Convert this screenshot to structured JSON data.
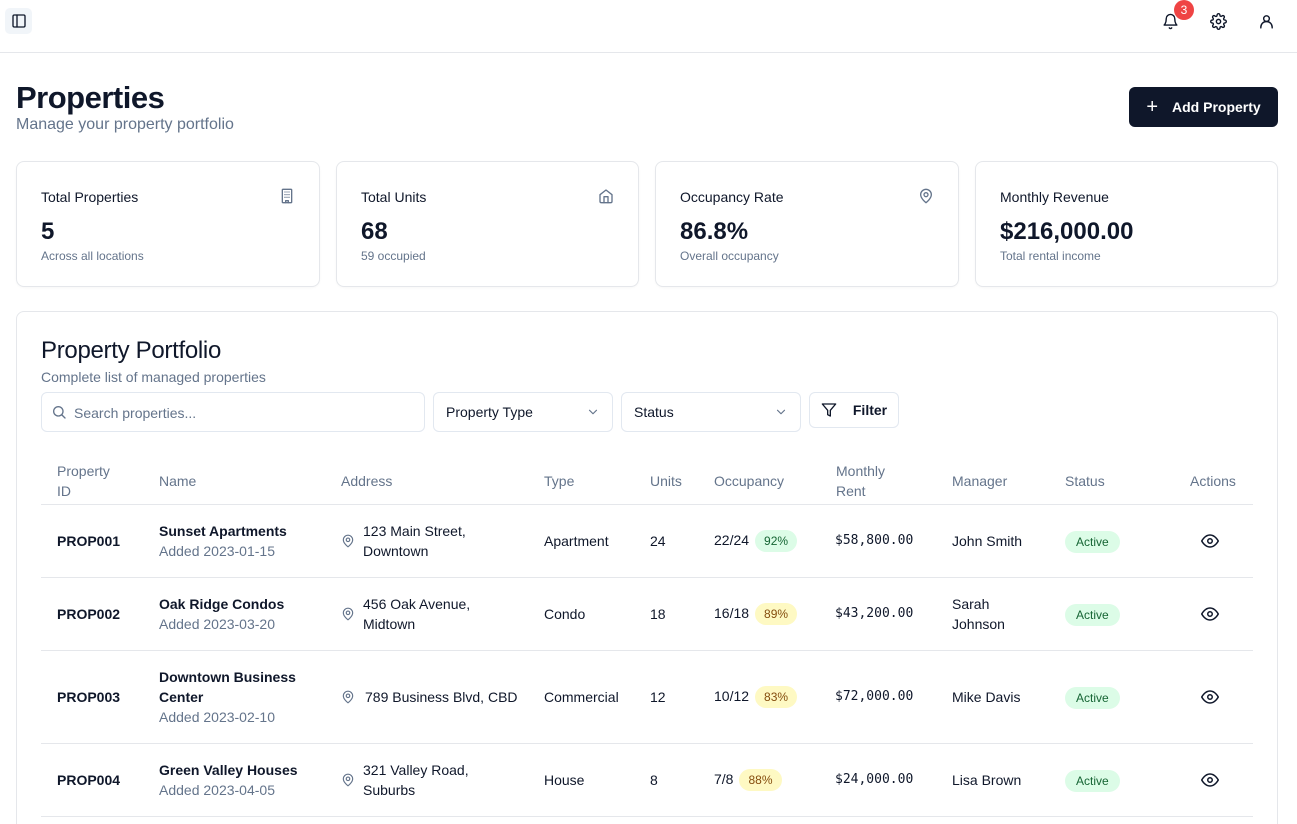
{
  "header": {
    "notification_count": "3"
  },
  "page": {
    "title": "Properties",
    "subtitle": "Manage your property portfolio",
    "add_button": "Add Property"
  },
  "stats": [
    {
      "label": "Total Properties",
      "value": "5",
      "sub": "Across all locations",
      "icon": "building-icon"
    },
    {
      "label": "Total Units",
      "value": "68",
      "sub": "59 occupied",
      "icon": "home-icon"
    },
    {
      "label": "Occupancy Rate",
      "value": "86.8%",
      "sub": "Overall occupancy",
      "icon": "map-pin-icon"
    },
    {
      "label": "Monthly Revenue",
      "value": "$216,000.00",
      "sub": "Total rental income",
      "icon": ""
    }
  ],
  "portfolio": {
    "title": "Property Portfolio",
    "subtitle": "Complete list of managed properties",
    "search_placeholder": "Search properties...",
    "type_select": "Property Type",
    "status_select": "Status",
    "filter_button": "Filter"
  },
  "table": {
    "headers": {
      "id": "Property ID",
      "name": "Name",
      "address": "Address",
      "type": "Type",
      "units": "Units",
      "occupancy": "Occupancy",
      "rent": "Monthly Rent",
      "manager": "Manager",
      "status": "Status",
      "actions": "Actions"
    },
    "rows": [
      {
        "id": "PROP001",
        "name": "Sunset Apartments",
        "added": "Added 2023-01-15",
        "address": "123 Main Street, Downtown",
        "type": "Apartment",
        "units": "24",
        "occupancy": "22/24",
        "pct": "92%",
        "rent": "$58,800.00",
        "manager": "John Smith",
        "status": "Active"
      },
      {
        "id": "PROP002",
        "name": "Oak Ridge Condos",
        "added": "Added 2023-03-20",
        "address": "456 Oak Avenue, Midtown",
        "type": "Condo",
        "units": "18",
        "occupancy": "16/18",
        "pct": "89%",
        "rent": "$43,200.00",
        "manager": "Sarah Johnson",
        "status": "Active"
      },
      {
        "id": "PROP003",
        "name": "Downtown Business Center",
        "added": "Added 2023-02-10",
        "address": "789 Business Blvd, CBD",
        "type": "Commercial",
        "units": "12",
        "occupancy": "10/12",
        "pct": "83%",
        "rent": "$72,000.00",
        "manager": "Mike Davis",
        "status": "Active"
      },
      {
        "id": "PROP004",
        "name": "Green Valley Houses",
        "added": "Added 2023-04-05",
        "address": "321 Valley Road, Suburbs",
        "type": "House",
        "units": "8",
        "occupancy": "7/8",
        "pct": "88%",
        "rent": "$24,000.00",
        "manager": "Lisa Brown",
        "status": "Active"
      }
    ]
  },
  "colors": {
    "primary": "#0f172a",
    "muted": "#64748b",
    "badge_red": "#ef4444",
    "active_bg": "#dcfce7",
    "active_text": "#166534",
    "pct_yellow_bg": "#fef9c3"
  }
}
